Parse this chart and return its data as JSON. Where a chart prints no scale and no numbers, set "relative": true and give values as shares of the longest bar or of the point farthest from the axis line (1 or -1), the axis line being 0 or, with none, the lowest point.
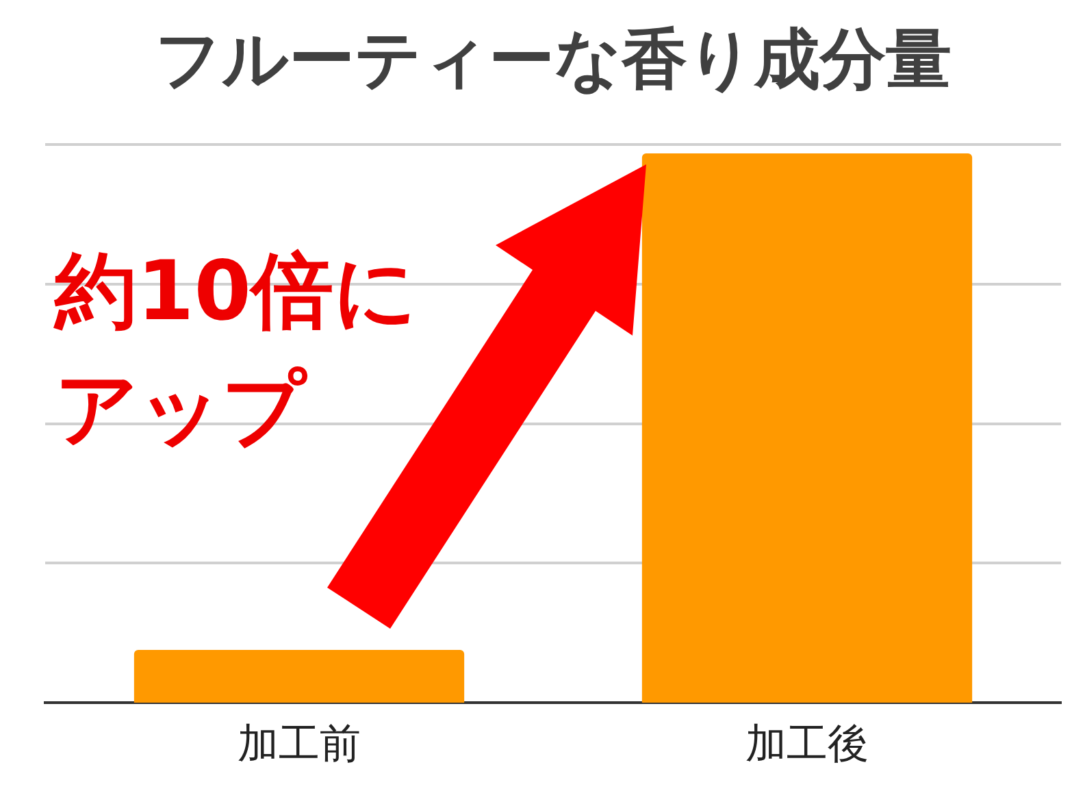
{
  "chart_data": {
    "type": "bar",
    "title": "フルーティーな香り成分量",
    "categories": [
      "加工前",
      "加工後"
    ],
    "values": [
      0.096,
      1
    ],
    "color": "#ff9900",
    "relative": true,
    "grid": "y",
    "legend": false,
    "annotations": [
      "約10倍にアップ"
    ]
  }
}
